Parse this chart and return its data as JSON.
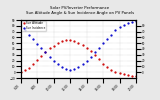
{
  "title": "Solar PV/Inverter Performance\nSun Altitude Angle & Sun Incidence Angle on PV Panels",
  "title_fontsize": 2.8,
  "bg_color": "#e8e8e8",
  "plot_bg": "#ffffff",
  "grid_color": "#aaaaaa",
  "x_start": 6.0,
  "x_end": 20.0,
  "x_ticks": [
    6,
    8,
    10,
    12,
    14,
    16,
    18,
    20
  ],
  "x_tick_labels": [
    "6:00",
    "8:00",
    "10:00",
    "12:00",
    "14:00",
    "16:00",
    "18:00",
    "20:00"
  ],
  "y_left_min": -10,
  "y_left_max": 90,
  "y_right_min": -10,
  "y_right_max": 90,
  "y_right_ticks": [
    0,
    10,
    20,
    30,
    40,
    50,
    60,
    70,
    80
  ],
  "altitude_color": "#cc0000",
  "incidence_color": "#0000cc",
  "altitude_points_x": [
    6.0,
    6.5,
    7.0,
    7.5,
    8.0,
    8.5,
    9.0,
    9.5,
    10.0,
    10.5,
    11.0,
    11.5,
    12.0,
    12.5,
    13.0,
    13.5,
    14.0,
    14.5,
    15.0,
    15.5,
    16.0,
    16.5,
    17.0,
    17.5,
    18.0,
    18.5,
    19.0,
    19.5,
    20.0
  ],
  "altitude_points_y": [
    0,
    3,
    8,
    14,
    21,
    28,
    35,
    41,
    46,
    50,
    53,
    55,
    55,
    54,
    51,
    47,
    42,
    36,
    29,
    22,
    15,
    9,
    4,
    1,
    -1,
    -3,
    -5,
    -6,
    -7
  ],
  "incidence_points_x": [
    6.0,
    6.5,
    7.0,
    7.5,
    8.0,
    8.5,
    9.0,
    9.5,
    10.0,
    10.5,
    11.0,
    11.5,
    12.0,
    12.5,
    13.0,
    13.5,
    14.0,
    14.5,
    15.0,
    15.5,
    16.0,
    16.5,
    17.0,
    17.5,
    18.0,
    18.5,
    19.0,
    19.5,
    20.0
  ],
  "incidence_points_y": [
    80,
    72,
    65,
    57,
    49,
    42,
    34,
    27,
    20,
    14,
    9,
    5,
    3,
    5,
    9,
    14,
    20,
    27,
    34,
    42,
    50,
    57,
    65,
    72,
    78,
    82,
    85,
    87,
    88
  ],
  "legend_alt": "Sun Altitude",
  "legend_inc": "Sun Incidence",
  "marker_size": 1.2
}
